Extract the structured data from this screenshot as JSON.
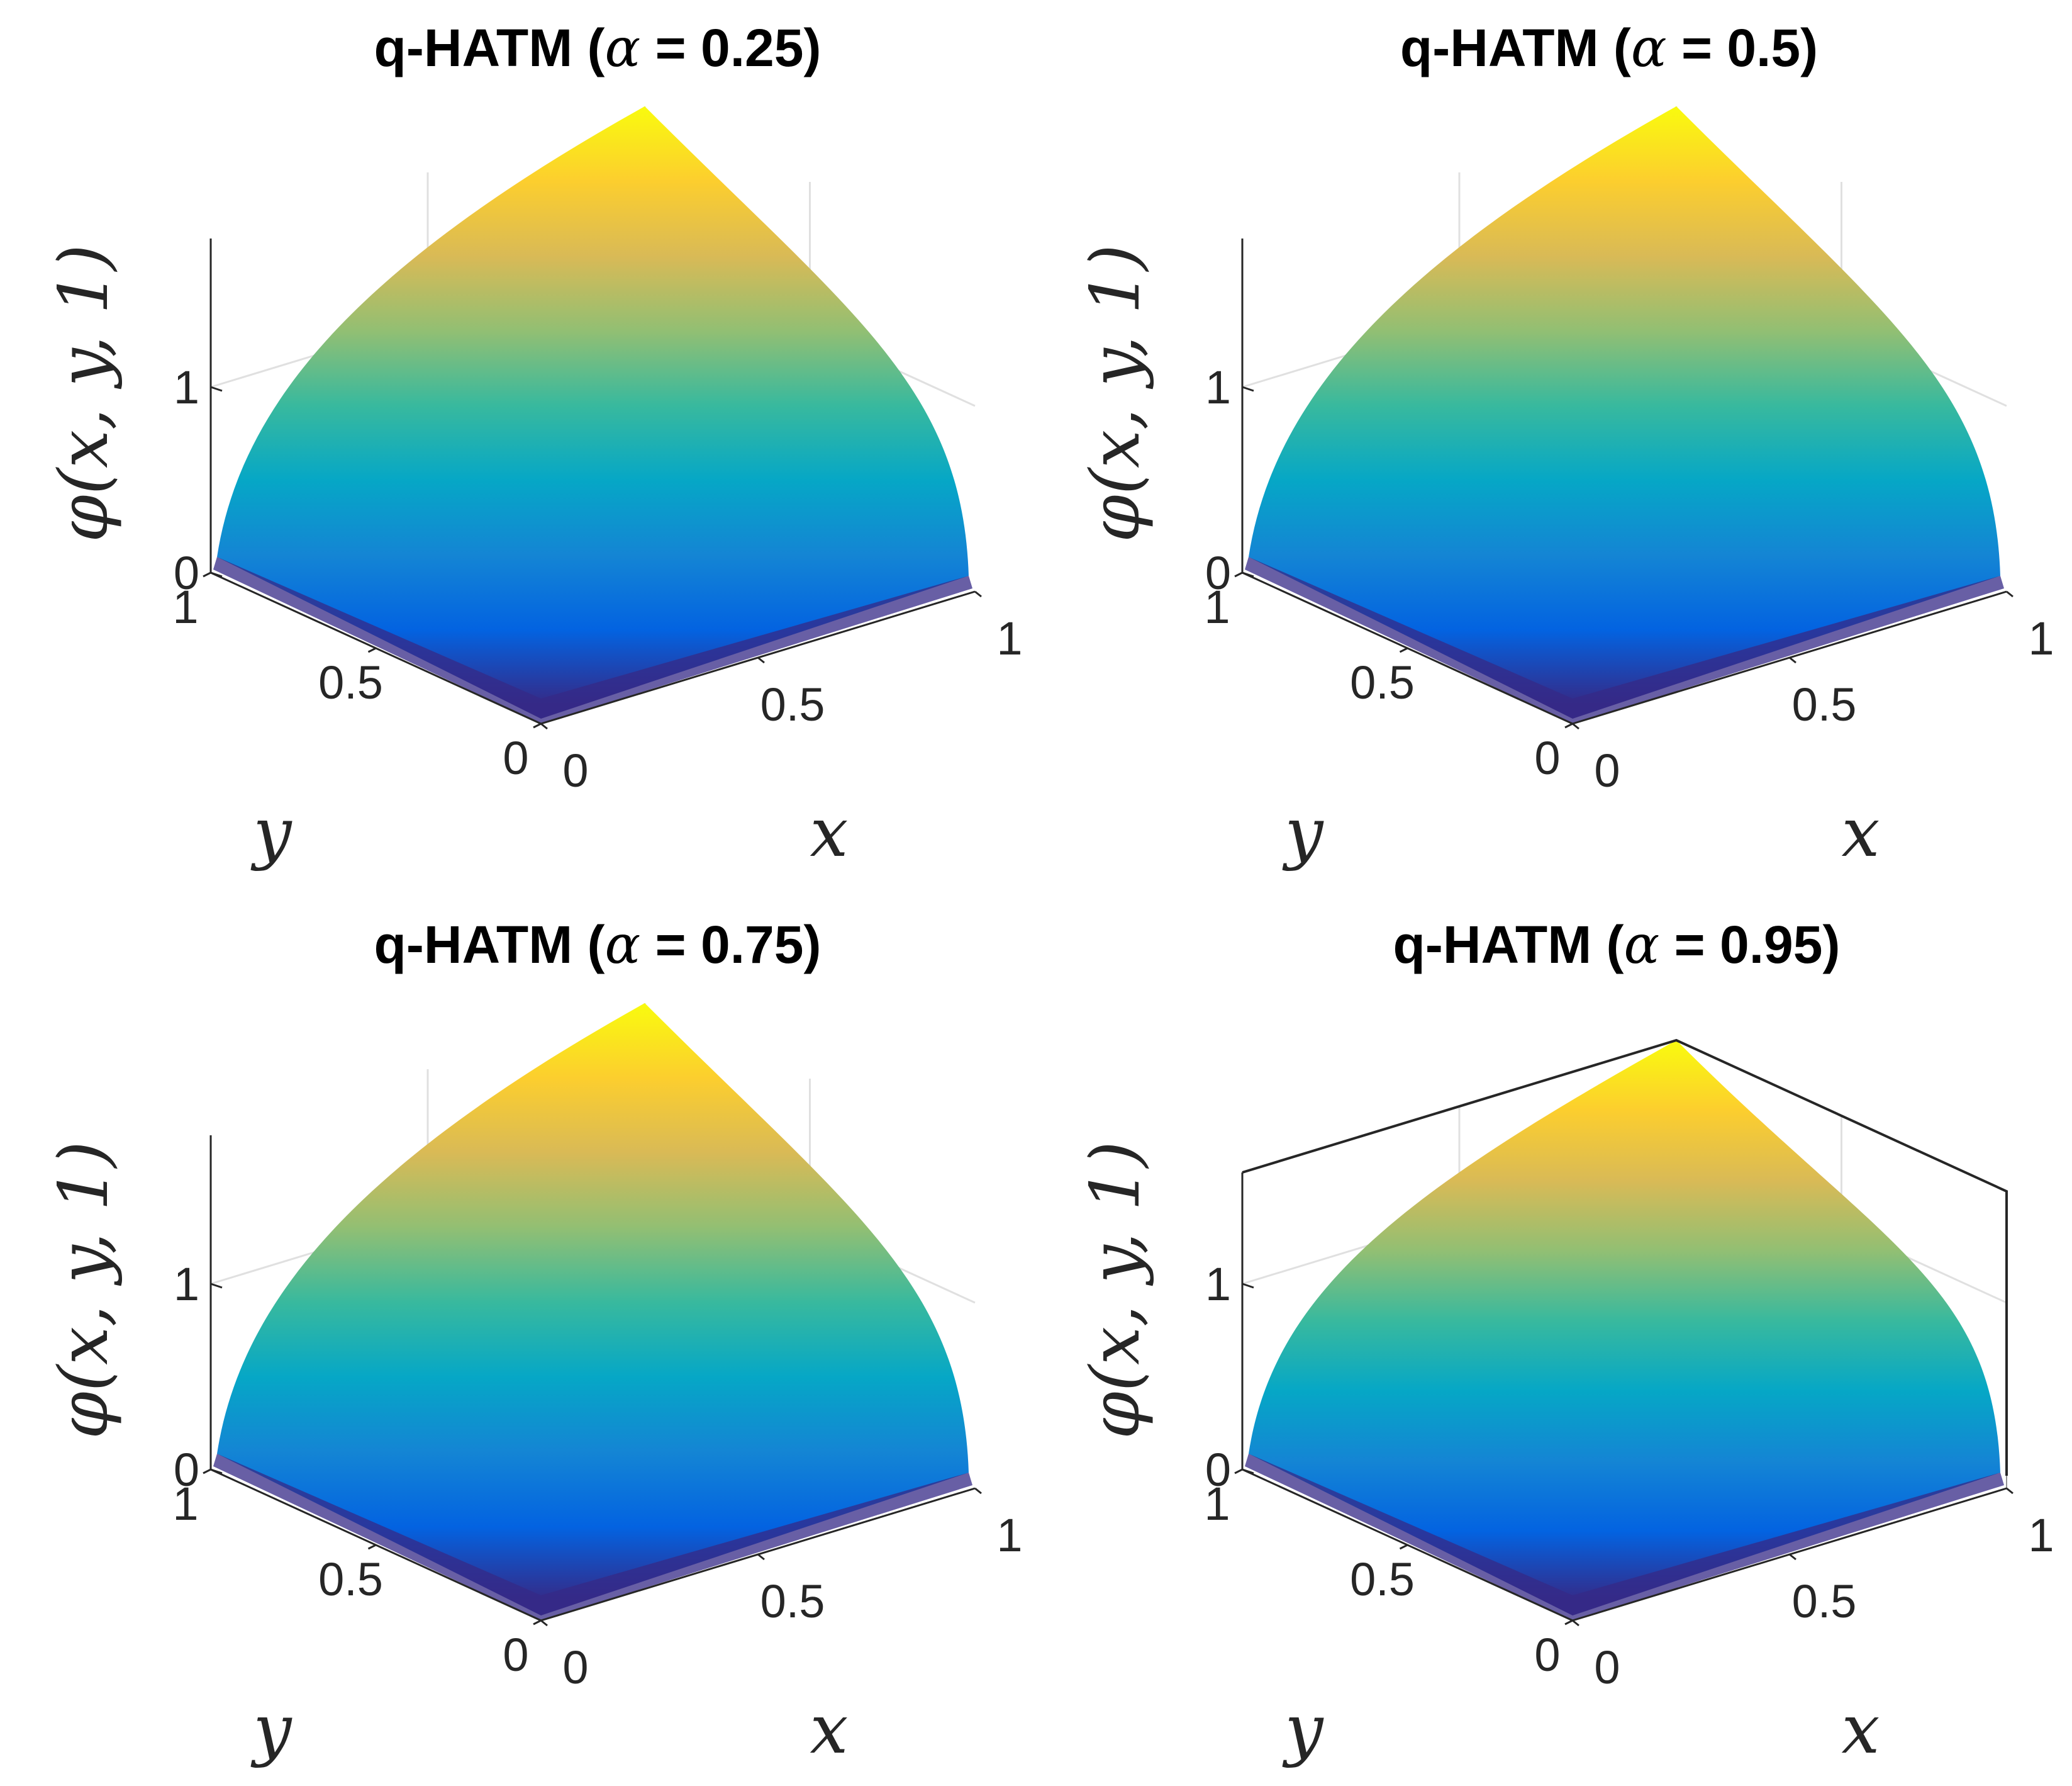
{
  "chart_data": [
    {
      "type": "surface",
      "title_prefix": "q-HATM (",
      "title_symbol": "α",
      "title_suffix": " = 0.25)",
      "alpha": 0.25,
      "xlabel": "x",
      "ylabel": "y",
      "zlabel": "φ(x, y, 1)",
      "x_ticks": [
        {
          "value": 0,
          "label": "0"
        },
        {
          "value": 0.5,
          "label": "0.5"
        },
        {
          "value": 1,
          "label": "1"
        }
      ],
      "y_ticks": [
        {
          "value": 0,
          "label": "0"
        },
        {
          "value": 0.5,
          "label": "0.5"
        },
        {
          "value": 1,
          "label": "1"
        }
      ],
      "z_ticks": [
        {
          "value": 0,
          "label": "0"
        },
        {
          "value": 1,
          "label": "1"
        }
      ],
      "xlim": [
        0,
        1
      ],
      "ylim": [
        0,
        1
      ],
      "zlim": [
        0,
        1.8
      ],
      "z_peak": 1.8,
      "box": false
    },
    {
      "type": "surface",
      "title_prefix": "q-HATM (",
      "title_symbol": "α",
      "title_suffix": " = 0.5)",
      "alpha": 0.5,
      "xlabel": "x",
      "ylabel": "y",
      "zlabel": "φ(x, y, 1)",
      "x_ticks": [
        {
          "value": 0,
          "label": "0"
        },
        {
          "value": 0.5,
          "label": "0.5"
        },
        {
          "value": 1,
          "label": "1"
        }
      ],
      "y_ticks": [
        {
          "value": 0,
          "label": "0"
        },
        {
          "value": 0.5,
          "label": "0.5"
        },
        {
          "value": 1,
          "label": "1"
        }
      ],
      "z_ticks": [
        {
          "value": 0,
          "label": "0"
        },
        {
          "value": 1,
          "label": "1"
        }
      ],
      "xlim": [
        0,
        1
      ],
      "ylim": [
        0,
        1
      ],
      "zlim": [
        0,
        1.8
      ],
      "z_peak": 1.8,
      "box": false
    },
    {
      "type": "surface",
      "title_prefix": "q-HATM (",
      "title_symbol": "α",
      "title_suffix": " = 0.75)",
      "alpha": 0.75,
      "xlabel": "x",
      "ylabel": "y",
      "zlabel": "φ(x, y, 1)",
      "x_ticks": [
        {
          "value": 0,
          "label": "0"
        },
        {
          "value": 0.5,
          "label": "0.5"
        },
        {
          "value": 1,
          "label": "1"
        }
      ],
      "y_ticks": [
        {
          "value": 0,
          "label": "0"
        },
        {
          "value": 0.5,
          "label": "0.5"
        },
        {
          "value": 1,
          "label": "1"
        }
      ],
      "z_ticks": [
        {
          "value": 0,
          "label": "0"
        },
        {
          "value": 1,
          "label": "1"
        }
      ],
      "xlim": [
        0,
        1
      ],
      "ylim": [
        0,
        1
      ],
      "zlim": [
        0,
        1.8
      ],
      "z_peak": 1.8,
      "box": false
    },
    {
      "type": "surface",
      "title_prefix": "q-HATM (",
      "title_symbol": "α",
      "title_suffix": " = 0.95)",
      "alpha": 0.95,
      "xlabel": "x",
      "ylabel": "y",
      "zlabel": "φ(x, y, 1)",
      "x_ticks": [
        {
          "value": 0,
          "label": "0"
        },
        {
          "value": 0.5,
          "label": "0.5"
        },
        {
          "value": 1,
          "label": "1"
        }
      ],
      "y_ticks": [
        {
          "value": 0,
          "label": "0"
        },
        {
          "value": 0.5,
          "label": "0.5"
        },
        {
          "value": 1,
          "label": "1"
        }
      ],
      "z_ticks": [
        {
          "value": 0,
          "label": "0"
        },
        {
          "value": 1,
          "label": "1"
        }
      ],
      "xlim": [
        0,
        1
      ],
      "ylim": [
        0,
        1
      ],
      "zlim": [
        0,
        1.6
      ],
      "z_peak": 1.6,
      "box": true
    }
  ],
  "colors": {
    "parula": [
      "#352a87",
      "#0363e1",
      "#1485d4",
      "#06a7c6",
      "#38b99e",
      "#92bf73",
      "#d9ba56",
      "#fcce2e",
      "#f9fb0e"
    ],
    "axis": "#262626",
    "grid": "#e0e0e0",
    "box": "#262626"
  }
}
